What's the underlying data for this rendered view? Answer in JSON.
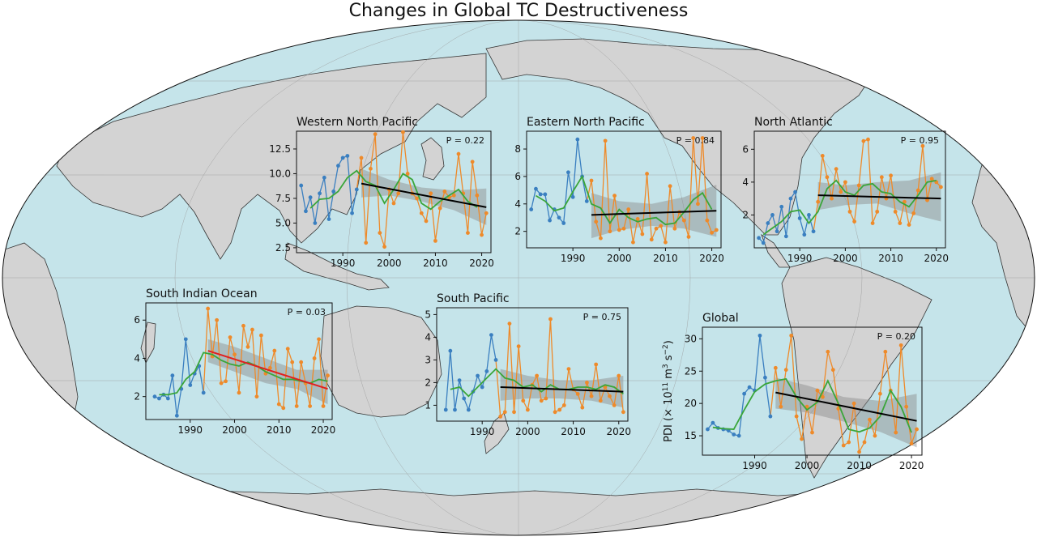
{
  "title": "Changes in Global TC Destructiveness",
  "colors": {
    "ocean": "#c5e4ea",
    "land": "#d3d3d3",
    "coast": "#333333",
    "early": "#3a7fc0",
    "late": "#ee8a2a",
    "smooth": "#3aa63a",
    "trend": "#000000",
    "trend_sig": "#e02020",
    "band": "#8a8a8a"
  },
  "chart_data": [
    {
      "type": "line",
      "title": "Western North Pacific",
      "p_label": "P = 0.22",
      "xlim": [
        1980,
        2022
      ],
      "ylim": [
        2.0,
        14.3
      ],
      "xticks": [
        1990,
        2000,
        2010,
        2020
      ],
      "yticks": [
        "2.5",
        "5.0",
        "7.5",
        "10.0",
        "12.5"
      ],
      "early": {
        "x": [
          1981,
          1982,
          1983,
          1984,
          1985,
          1986,
          1987,
          1988,
          1989,
          1990,
          1991,
          1992,
          1993
        ],
        "y": [
          8.8,
          6.2,
          7.6,
          5.0,
          8.0,
          9.6,
          5.4,
          8.2,
          10.8,
          11.6,
          11.8,
          6.0,
          8.4
        ]
      },
      "late": {
        "x": [
          1993,
          1994,
          1995,
          1996,
          1997,
          1998,
          1999,
          2000,
          2001,
          2002,
          2003,
          2004,
          2005,
          2006,
          2007,
          2008,
          2009,
          2010,
          2011,
          2012,
          2013,
          2014,
          2015,
          2016,
          2017,
          2018,
          2019,
          2020,
          2021
        ],
        "y": [
          8.4,
          11.6,
          3.0,
          10.5,
          14.0,
          4.0,
          2.6,
          8.4,
          7.0,
          8.0,
          14.2,
          10.0,
          8.0,
          7.5,
          6.0,
          5.2,
          8.0,
          3.2,
          6.5,
          8.2,
          7.6,
          7.8,
          12.0,
          8.0,
          4.0,
          11.2,
          7.8,
          3.8,
          6.0
        ]
      },
      "smooth": {
        "x": [
          1983,
          1985,
          1987,
          1989,
          1991,
          1993,
          1995,
          1997,
          1999,
          2001,
          2003,
          2005,
          2007,
          2009,
          2011,
          2013,
          2015,
          2017,
          2019
        ],
        "y": [
          6.5,
          7.4,
          7.5,
          8.2,
          9.6,
          10.3,
          9.2,
          8.8,
          7.0,
          8.4,
          10.0,
          9.4,
          7.0,
          6.4,
          7.2,
          7.8,
          8.4,
          7.2,
          6.6
        ]
      },
      "trend": {
        "x": [
          1994,
          2021
        ],
        "y": [
          9.0,
          6.6
        ],
        "significant": false
      },
      "band": {
        "x": [
          1994,
          2000,
          2007,
          2014,
          2021
        ],
        "upper": [
          10.5,
          9.4,
          8.6,
          8.3,
          8.5
        ],
        "lower": [
          7.6,
          7.8,
          7.2,
          6.3,
          4.8
        ]
      }
    },
    {
      "type": "line",
      "title": "Eastern North Pacific",
      "p_label": "P = 0.84",
      "xlim": [
        1980,
        2022
      ],
      "ylim": [
        0.8,
        9.3
      ],
      "xticks": [
        1990,
        2000,
        2010,
        2020
      ],
      "yticks": [
        "2",
        "4",
        "6",
        "8"
      ],
      "early": {
        "x": [
          1981,
          1982,
          1983,
          1984,
          1985,
          1986,
          1987,
          1988,
          1989,
          1990,
          1991,
          1992,
          1993
        ],
        "y": [
          3.6,
          5.1,
          4.7,
          4.7,
          2.8,
          3.6,
          3.0,
          2.6,
          6.3,
          4.5,
          8.7,
          6.0,
          4.2
        ]
      },
      "late": {
        "x": [
          1993,
          1994,
          1995,
          1996,
          1997,
          1998,
          1999,
          2000,
          2001,
          2002,
          2003,
          2004,
          2005,
          2006,
          2007,
          2008,
          2009,
          2010,
          2011,
          2012,
          2013,
          2014,
          2015,
          2016,
          2017,
          2018,
          2019,
          2020,
          2021
        ],
        "y": [
          4.2,
          5.7,
          2.7,
          1.5,
          8.6,
          2.0,
          4.6,
          2.1,
          2.2,
          3.6,
          1.2,
          2.9,
          1.8,
          6.2,
          1.4,
          2.2,
          2.4,
          1.2,
          5.3,
          2.2,
          3.4,
          2.8,
          1.6,
          8.8,
          4.0,
          8.8,
          2.8,
          1.9,
          2.1
        ]
      },
      "smooth": {
        "x": [
          1982,
          1984,
          1986,
          1988,
          1990,
          1992,
          1994,
          1996,
          1998,
          2000,
          2002,
          2004,
          2006,
          2008,
          2010,
          2012,
          2014,
          2016,
          2018,
          2020
        ],
        "y": [
          4.6,
          4.2,
          3.5,
          3.7,
          4.9,
          6.0,
          4.0,
          3.7,
          2.6,
          3.6,
          3.0,
          2.7,
          2.9,
          3.0,
          2.5,
          2.6,
          3.4,
          4.3,
          4.8,
          3.6
        ]
      },
      "trend": {
        "x": [
          1994,
          2021
        ],
        "y": [
          3.2,
          3.5
        ],
        "significant": false
      },
      "band": {
        "x": [
          1994,
          2000,
          2007,
          2014,
          2021
        ],
        "upper": [
          4.8,
          4.2,
          4.0,
          4.5,
          5.4
        ],
        "lower": [
          1.5,
          2.1,
          2.4,
          2.2,
          1.6
        ]
      }
    },
    {
      "type": "line",
      "title": "North Atlantic",
      "p_label": "P = 0.95",
      "xlim": [
        1980,
        2022
      ],
      "ylim": [
        0.0,
        7.1
      ],
      "xticks": [
        1990,
        2000,
        2010,
        2020
      ],
      "yticks": [
        "2",
        "4",
        "6"
      ],
      "early": {
        "x": [
          1981,
          1982,
          1983,
          1984,
          1985,
          1986,
          1987,
          1988,
          1989,
          1990,
          1991,
          1992,
          1993
        ],
        "y": [
          0.6,
          0.3,
          1.5,
          2.0,
          1.0,
          2.5,
          0.7,
          3.0,
          3.4,
          1.8,
          0.8,
          2.0,
          1.0
        ]
      },
      "late": {
        "x": [
          1993,
          1994,
          1995,
          1996,
          1997,
          1998,
          1999,
          2000,
          2001,
          2002,
          2003,
          2004,
          2005,
          2006,
          2007,
          2008,
          2009,
          2010,
          2011,
          2012,
          2013,
          2014,
          2015,
          2016,
          2017,
          2018,
          2019,
          2020,
          2021
        ],
        "y": [
          1.0,
          2.8,
          5.6,
          4.3,
          3.0,
          4.8,
          3.4,
          4.0,
          2.2,
          1.6,
          3.8,
          6.5,
          6.6,
          1.5,
          2.2,
          4.3,
          3.0,
          4.4,
          2.2,
          1.5,
          2.8,
          1.4,
          2.1,
          3.5,
          6.2,
          2.9,
          4.2,
          4.0,
          3.7
        ]
      },
      "smooth": {
        "x": [
          1982,
          1984,
          1986,
          1988,
          1990,
          1992,
          1994,
          1996,
          1998,
          2000,
          2002,
          2004,
          2006,
          2008,
          2010,
          2012,
          2014,
          2016,
          2018,
          2020
        ],
        "y": [
          0.8,
          1.2,
          1.6,
          2.2,
          2.3,
          1.5,
          2.2,
          3.6,
          4.1,
          3.4,
          3.2,
          3.8,
          3.9,
          3.4,
          3.3,
          2.8,
          2.5,
          3.2,
          4.0,
          4.1
        ]
      },
      "trend": {
        "x": [
          1994,
          2021
        ],
        "y": [
          3.2,
          3.0
        ],
        "significant": false
      },
      "band": {
        "x": [
          1994,
          2000,
          2007,
          2014,
          2021
        ],
        "upper": [
          4.0,
          3.8,
          4.0,
          4.1,
          4.6
        ],
        "lower": [
          2.3,
          2.6,
          2.7,
          2.1,
          1.6
        ]
      }
    },
    {
      "type": "line",
      "title": "South Indian Ocean",
      "p_label": "P = 0.03",
      "xlim": [
        1980,
        2022
      ],
      "ylim": [
        0.8,
        6.9
      ],
      "xticks": [
        1990,
        2000,
        2010,
        2020
      ],
      "yticks": [
        "2",
        "4",
        "6"
      ],
      "early": {
        "x": [
          1982,
          1983,
          1984,
          1985,
          1986,
          1987,
          1988,
          1989,
          1990,
          1991,
          1992,
          1993
        ],
        "y": [
          2.0,
          1.9,
          2.1,
          1.9,
          3.1,
          1.0,
          2.4,
          5.0,
          2.6,
          3.2,
          3.6,
          2.2
        ]
      },
      "late": {
        "x": [
          1993,
          1994,
          1995,
          1996,
          1997,
          1998,
          1999,
          2000,
          2001,
          2002,
          2003,
          2004,
          2005,
          2006,
          2007,
          2008,
          2009,
          2010,
          2011,
          2012,
          2013,
          2014,
          2015,
          2016,
          2017,
          2018,
          2019,
          2020,
          2021
        ],
        "y": [
          2.2,
          6.6,
          4.1,
          6.0,
          2.7,
          2.8,
          5.1,
          4.2,
          2.2,
          5.7,
          4.6,
          5.5,
          2.0,
          5.2,
          3.2,
          3.5,
          4.4,
          1.6,
          1.4,
          4.5,
          3.8,
          1.5,
          3.8,
          2.7,
          1.5,
          4.0,
          5.0,
          1.5,
          3.1
        ]
      },
      "smooth": {
        "x": [
          1983,
          1985,
          1987,
          1989,
          1991,
          1993,
          1995,
          1997,
          1999,
          2001,
          2003,
          2005,
          2007,
          2009,
          2011,
          2013,
          2015,
          2017,
          2019,
          2021
        ],
        "y": [
          2.1,
          2.1,
          2.2,
          2.9,
          3.3,
          4.3,
          4.2,
          3.9,
          3.7,
          3.6,
          3.8,
          3.6,
          3.3,
          3.1,
          2.9,
          2.9,
          2.8,
          2.7,
          2.9,
          2.8
        ]
      },
      "trend": {
        "x": [
          1994,
          2021
        ],
        "y": [
          4.4,
          2.4
        ],
        "significant": true
      },
      "band": {
        "x": [
          1994,
          2000,
          2007,
          2014,
          2021
        ],
        "upper": [
          5.0,
          4.6,
          4.0,
          3.4,
          3.4
        ],
        "lower": [
          3.8,
          3.3,
          2.7,
          2.4,
          1.6
        ]
      }
    },
    {
      "type": "line",
      "title": "South Pacific",
      "p_label": "P = 0.75",
      "xlim": [
        1980,
        2022
      ],
      "ylim": [
        0.3,
        5.3
      ],
      "xticks": [
        1990,
        2000,
        2010,
        2020
      ],
      "yticks": [
        "1",
        "2",
        "3",
        "4",
        "5"
      ],
      "early": {
        "x": [
          1982,
          1983,
          1984,
          1985,
          1986,
          1987,
          1988,
          1989,
          1990,
          1991,
          1992,
          1993
        ],
        "y": [
          0.8,
          3.4,
          0.8,
          2.1,
          1.3,
          0.8,
          1.6,
          2.3,
          1.8,
          2.5,
          4.1,
          3.0
        ]
      },
      "late": {
        "x": [
          1993,
          1994,
          1995,
          1996,
          1997,
          1998,
          1999,
          2000,
          2001,
          2002,
          2003,
          2004,
          2005,
          2006,
          2007,
          2008,
          2009,
          2010,
          2011,
          2012,
          2013,
          2014,
          2015,
          2016,
          2017,
          2018,
          2019,
          2020,
          2021
        ],
        "y": [
          3.0,
          0.5,
          0.7,
          4.6,
          0.7,
          3.6,
          1.2,
          0.8,
          1.9,
          2.3,
          1.2,
          1.3,
          4.8,
          0.7,
          0.8,
          1.0,
          2.6,
          1.7,
          1.5,
          0.9,
          2.0,
          1.4,
          2.8,
          1.2,
          1.8,
          1.4,
          1.0,
          2.3,
          0.7
        ]
      },
      "smooth": {
        "x": [
          1983,
          1985,
          1987,
          1989,
          1991,
          1993,
          1995,
          1997,
          1999,
          2001,
          2003,
          2005,
          2007,
          2009,
          2011,
          2013,
          2015,
          2017,
          2019,
          2021
        ],
        "y": [
          1.7,
          1.8,
          1.4,
          1.8,
          2.2,
          2.6,
          2.2,
          2.1,
          1.8,
          1.9,
          1.6,
          1.9,
          1.7,
          1.7,
          1.8,
          1.8,
          1.7,
          1.9,
          1.8,
          1.5
        ]
      },
      "trend": {
        "x": [
          1994,
          2021
        ],
        "y": [
          1.8,
          1.6
        ],
        "significant": false
      },
      "band": {
        "x": [
          1994,
          2000,
          2007,
          2014,
          2021
        ],
        "upper": [
          2.6,
          2.3,
          2.1,
          2.1,
          2.3
        ],
        "lower": [
          1.2,
          1.3,
          1.3,
          1.2,
          0.9
        ]
      }
    },
    {
      "type": "line",
      "title": "Global",
      "p_label": "P = 0.20",
      "ylabel": "PDI (× 10",
      "ylabel_sup1": "11",
      "ylabel_mid": " m",
      "ylabel_sup2": "3",
      "ylabel_mid2": " s",
      "ylabel_sup3": "−2",
      "ylabel_end": ")",
      "xlim": [
        1980,
        2022
      ],
      "ylim": [
        12.0,
        31.8
      ],
      "xticks": [
        1990,
        2000,
        2010,
        2020
      ],
      "yticks": [
        "15",
        "20",
        "25",
        "30"
      ],
      "early": {
        "x": [
          1981,
          1982,
          1983,
          1984,
          1985,
          1986,
          1987,
          1988,
          1989,
          1990,
          1991,
          1992,
          1993
        ],
        "y": [
          16.0,
          17.0,
          16.2,
          16.0,
          15.8,
          15.2,
          15.0,
          21.5,
          22.5,
          22.0,
          30.5,
          24.0,
          18.0
        ]
      },
      "late": {
        "x": [
          1993,
          1994,
          1995,
          1996,
          1997,
          1998,
          1999,
          2000,
          2001,
          2002,
          2003,
          2004,
          2005,
          2006,
          2007,
          2008,
          2009,
          2010,
          2011,
          2012,
          2013,
          2014,
          2015,
          2016,
          2017,
          2018,
          2019,
          2020,
          2021
        ],
        "y": [
          18.0,
          25.5,
          19.5,
          25.2,
          30.5,
          18.0,
          14.5,
          19.5,
          15.5,
          22.0,
          21.0,
          28.0,
          25.2,
          19.2,
          13.5,
          14.0,
          20.0,
          12.5,
          14.0,
          17.5,
          15.0,
          21.5,
          28.0,
          22.0,
          15.5,
          29.0,
          19.5,
          13.8,
          16.0
        ]
      },
      "smooth": {
        "x": [
          1982,
          1984,
          1986,
          1988,
          1990,
          1992,
          1994,
          1996,
          1998,
          2000,
          2002,
          2004,
          2006,
          2008,
          2010,
          2012,
          2014,
          2016,
          2018,
          2020
        ],
        "y": [
          16.3,
          16.1,
          16.0,
          19.0,
          21.8,
          23.0,
          23.5,
          23.8,
          21.0,
          19.0,
          20.2,
          23.5,
          20.0,
          16.0,
          15.6,
          16.2,
          18.0,
          22.0,
          19.5,
          15.5
        ]
      },
      "trend": {
        "x": [
          1994,
          2021
        ],
        "y": [
          21.7,
          17.3
        ],
        "significant": false
      },
      "band": {
        "x": [
          1994,
          2000,
          2007,
          2014,
          2021
        ],
        "upper": [
          24.0,
          22.8,
          21.0,
          20.4,
          21.5
        ],
        "lower": [
          19.2,
          18.6,
          17.2,
          15.6,
          13.2
        ]
      }
    }
  ]
}
